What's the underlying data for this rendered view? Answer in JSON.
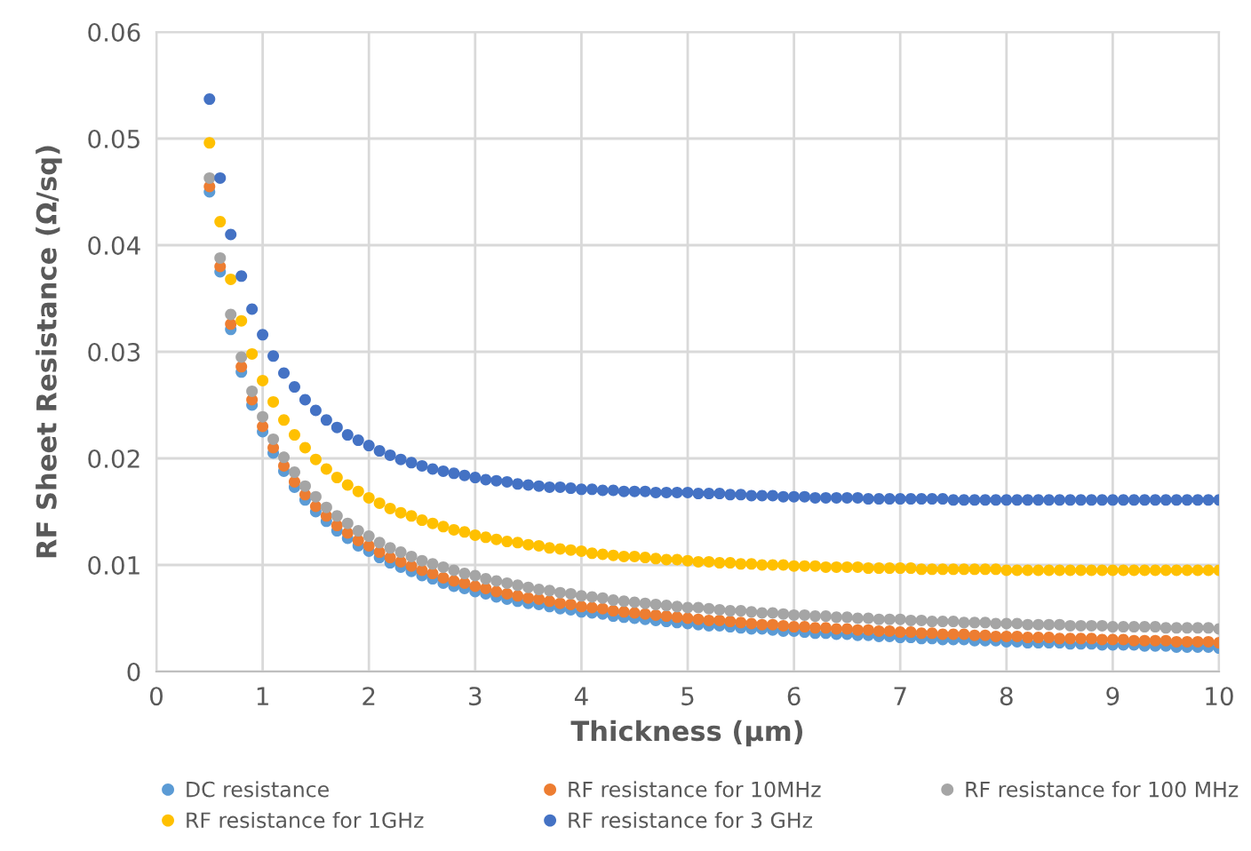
{
  "chart_data": {
    "type": "scatter",
    "xlabel": "Thickness (µm)",
    "ylabel": "RF Sheet Resistance (Ω/sq)",
    "xlim": [
      0,
      10
    ],
    "xticks": [
      0,
      1,
      2,
      3,
      4,
      5,
      6,
      7,
      8,
      9,
      10
    ],
    "ylim": [
      0,
      0.06
    ],
    "yticks": [
      0,
      0.01,
      0.02,
      0.03,
      0.04,
      0.05,
      0.06
    ],
    "grid": true,
    "legend": "bottom",
    "marker": "circle",
    "x": [
      0.5,
      0.6,
      0.7,
      0.8,
      0.9,
      1.0,
      1.1,
      1.2,
      1.3,
      1.4,
      1.5,
      1.6,
      1.7,
      1.8,
      1.9,
      2.0,
      2.1,
      2.2,
      2.3,
      2.4,
      2.5,
      2.6,
      2.7,
      2.8,
      2.9,
      3.0,
      3.1,
      3.2,
      3.3,
      3.4,
      3.5,
      3.6,
      3.7,
      3.8,
      3.9,
      4.0,
      4.1,
      4.2,
      4.3,
      4.4,
      4.5,
      4.6,
      4.7,
      4.8,
      4.9,
      5.0,
      5.1,
      5.2,
      5.3,
      5.4,
      5.5,
      5.6,
      5.7,
      5.8,
      5.9,
      6.0,
      6.1,
      6.2,
      6.3,
      6.4,
      6.5,
      6.6,
      6.7,
      6.8,
      6.9,
      7.0,
      7.1,
      7.2,
      7.3,
      7.4,
      7.5,
      7.6,
      7.7,
      7.8,
      7.9,
      8.0,
      8.1,
      8.2,
      8.3,
      8.4,
      8.5,
      8.6,
      8.7,
      8.8,
      8.9,
      9.0,
      9.1,
      9.2,
      9.3,
      9.4,
      9.5,
      9.6,
      9.7,
      9.8,
      9.9,
      10.0
    ],
    "series": [
      {
        "name": "DC resistance",
        "color": "#5b9bd5",
        "values": [
          0.045,
          0.0375,
          0.0321,
          0.0281,
          0.025,
          0.0225,
          0.0205,
          0.0188,
          0.0173,
          0.0161,
          0.015,
          0.0141,
          0.0132,
          0.0125,
          0.0118,
          0.0113,
          0.0107,
          0.0102,
          0.0098,
          0.0094,
          0.009,
          0.0087,
          0.0083,
          0.008,
          0.0078,
          0.0075,
          0.0073,
          0.007,
          0.0068,
          0.0066,
          0.0064,
          0.0063,
          0.0061,
          0.0059,
          0.0058,
          0.0056,
          0.0055,
          0.0054,
          0.0052,
          0.0051,
          0.005,
          0.0049,
          0.0048,
          0.0047,
          0.0046,
          0.0045,
          0.0044,
          0.0043,
          0.0043,
          0.0042,
          0.0041,
          0.004,
          0.004,
          0.0039,
          0.0038,
          0.0038,
          0.0037,
          0.0036,
          0.0036,
          0.0035,
          0.0035,
          0.0034,
          0.0034,
          0.0033,
          0.0033,
          0.0032,
          0.0032,
          0.0031,
          0.0031,
          0.003,
          0.003,
          0.003,
          0.0029,
          0.0029,
          0.0029,
          0.0028,
          0.0028,
          0.0027,
          0.0027,
          0.0027,
          0.0027,
          0.0026,
          0.0026,
          0.0026,
          0.0025,
          0.0025,
          0.0025,
          0.0025,
          0.0024,
          0.0024,
          0.0024,
          0.0023,
          0.0023,
          0.0023,
          0.0023,
          0.0022
        ]
      },
      {
        "name": "RF resistance for 10MHz",
        "color": "#ed7d31",
        "values": [
          0.0455,
          0.038,
          0.0326,
          0.0286,
          0.0255,
          0.023,
          0.021,
          0.0193,
          0.0178,
          0.0166,
          0.0155,
          0.0146,
          0.0137,
          0.013,
          0.0123,
          0.0118,
          0.0112,
          0.0107,
          0.0103,
          0.0099,
          0.0095,
          0.0092,
          0.0088,
          0.0085,
          0.0083,
          0.008,
          0.0078,
          0.0075,
          0.0073,
          0.0071,
          0.0069,
          0.0068,
          0.0066,
          0.0064,
          0.0063,
          0.0061,
          0.006,
          0.0059,
          0.0057,
          0.0056,
          0.0055,
          0.0054,
          0.0053,
          0.0052,
          0.0051,
          0.005,
          0.0049,
          0.0048,
          0.0048,
          0.0047,
          0.0046,
          0.0045,
          0.0044,
          0.0044,
          0.0043,
          0.0042,
          0.0042,
          0.0041,
          0.0041,
          0.004,
          0.004,
          0.0039,
          0.0039,
          0.0038,
          0.0038,
          0.0037,
          0.0037,
          0.0036,
          0.0036,
          0.0035,
          0.0035,
          0.0035,
          0.0034,
          0.0034,
          0.0033,
          0.0033,
          0.0033,
          0.0032,
          0.0032,
          0.0032,
          0.0031,
          0.0031,
          0.0031,
          0.0031,
          0.003,
          0.003,
          0.003,
          0.0029,
          0.0029,
          0.0029,
          0.0029,
          0.0028,
          0.0028,
          0.0028,
          0.0028,
          0.0027
        ]
      },
      {
        "name": "RF resistance for 100 MHz",
        "color": "#a5a5a5",
        "values": [
          0.0463,
          0.0388,
          0.0335,
          0.0295,
          0.0263,
          0.0239,
          0.0218,
          0.0201,
          0.0187,
          0.0174,
          0.0164,
          0.0154,
          0.0146,
          0.0139,
          0.0132,
          0.0127,
          0.0121,
          0.0116,
          0.0112,
          0.0108,
          0.0104,
          0.0101,
          0.0098,
          0.0095,
          0.0092,
          0.009,
          0.0087,
          0.0085,
          0.0083,
          0.0081,
          0.0079,
          0.0077,
          0.0076,
          0.0074,
          0.0073,
          0.0071,
          0.007,
          0.0069,
          0.0067,
          0.0066,
          0.0065,
          0.0064,
          0.0063,
          0.0062,
          0.0061,
          0.006,
          0.006,
          0.0059,
          0.0058,
          0.0057,
          0.0057,
          0.0056,
          0.0055,
          0.0055,
          0.0054,
          0.0053,
          0.0053,
          0.0052,
          0.0052,
          0.0051,
          0.0051,
          0.005,
          0.005,
          0.0049,
          0.0049,
          0.0049,
          0.0048,
          0.0048,
          0.0047,
          0.0047,
          0.0047,
          0.0046,
          0.0046,
          0.0046,
          0.0045,
          0.0045,
          0.0045,
          0.0044,
          0.0044,
          0.0044,
          0.0044,
          0.0043,
          0.0043,
          0.0043,
          0.0043,
          0.0042,
          0.0042,
          0.0042,
          0.0042,
          0.0042,
          0.0041,
          0.0041,
          0.0041,
          0.0041,
          0.0041,
          0.004
        ]
      },
      {
        "name": "RF resistance for 1GHz",
        "color": "#ffc000",
        "values": [
          0.0496,
          0.0422,
          0.0368,
          0.0329,
          0.0298,
          0.0273,
          0.0253,
          0.0236,
          0.0222,
          0.021,
          0.0199,
          0.019,
          0.0182,
          0.0175,
          0.0169,
          0.0163,
          0.0158,
          0.0153,
          0.0149,
          0.0146,
          0.0142,
          0.0139,
          0.0136,
          0.0133,
          0.0131,
          0.0128,
          0.0126,
          0.0124,
          0.0122,
          0.0121,
          0.0119,
          0.0118,
          0.0116,
          0.0115,
          0.0114,
          0.0113,
          0.0111,
          0.011,
          0.0109,
          0.0108,
          0.0108,
          0.0107,
          0.0106,
          0.0105,
          0.0105,
          0.0104,
          0.0103,
          0.0103,
          0.0102,
          0.0102,
          0.0101,
          0.0101,
          0.01,
          0.01,
          0.01,
          0.0099,
          0.0099,
          0.0099,
          0.0098,
          0.0098,
          0.0098,
          0.0098,
          0.0097,
          0.0097,
          0.0097,
          0.0097,
          0.0097,
          0.0096,
          0.0096,
          0.0096,
          0.0096,
          0.0096,
          0.0096,
          0.0096,
          0.0096,
          0.0095,
          0.0095,
          0.0095,
          0.0095,
          0.0095,
          0.0095,
          0.0095,
          0.0095,
          0.0095,
          0.0095,
          0.0095,
          0.0095,
          0.0095,
          0.0095,
          0.0095,
          0.0095,
          0.0095,
          0.0095,
          0.0095,
          0.0095,
          0.0095
        ]
      },
      {
        "name": "RF resistance for 3 GHz",
        "color": "#4472c4",
        "values": [
          0.0537,
          0.0463,
          0.041,
          0.0371,
          0.034,
          0.0316,
          0.0296,
          0.028,
          0.0267,
          0.0255,
          0.0245,
          0.0236,
          0.0229,
          0.0222,
          0.0217,
          0.0212,
          0.0207,
          0.0203,
          0.0199,
          0.0196,
          0.0193,
          0.019,
          0.0188,
          0.0186,
          0.0184,
          0.0182,
          0.018,
          0.0179,
          0.0178,
          0.0176,
          0.0175,
          0.0174,
          0.0173,
          0.0173,
          0.0172,
          0.0171,
          0.0171,
          0.017,
          0.017,
          0.0169,
          0.0169,
          0.0169,
          0.0168,
          0.0168,
          0.0168,
          0.0168,
          0.0167,
          0.0167,
          0.0167,
          0.0166,
          0.0166,
          0.0165,
          0.0165,
          0.0165,
          0.0164,
          0.0164,
          0.0164,
          0.0163,
          0.0163,
          0.0163,
          0.0163,
          0.0163,
          0.0162,
          0.0162,
          0.0162,
          0.0162,
          0.0162,
          0.0162,
          0.0162,
          0.0162,
          0.0161,
          0.0161,
          0.0161,
          0.0161,
          0.0161,
          0.0161,
          0.0161,
          0.0161,
          0.0161,
          0.0161,
          0.0161,
          0.0161,
          0.0161,
          0.0161,
          0.0161,
          0.0161,
          0.0161,
          0.0161,
          0.0161,
          0.0161,
          0.0161,
          0.0161,
          0.0161,
          0.0161,
          0.0161,
          0.0161
        ]
      }
    ]
  }
}
